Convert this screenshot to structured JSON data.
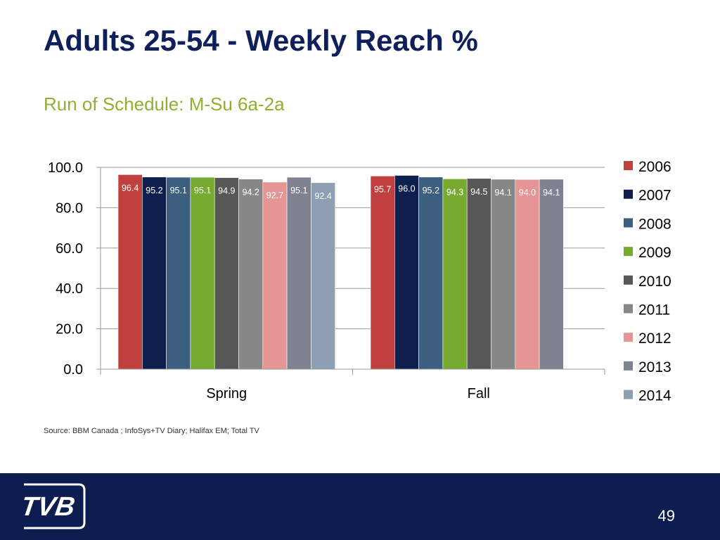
{
  "title": "Adults 25-54 - Weekly Reach %",
  "subtitle": "Run of Schedule: M-Su 6a-2a",
  "source": "Source: BBM Canada ; InfoSys+TV Diary; Halifax EM; Total TV",
  "page_number": "49",
  "logo_text": "TVB",
  "chart_data": {
    "type": "bar",
    "title": "",
    "xlabel": "",
    "ylabel": "",
    "ylim": [
      0,
      100
    ],
    "yticks": [
      0,
      20,
      40,
      60,
      80,
      100
    ],
    "ytick_labels": [
      "0.0",
      "20.0",
      "40.0",
      "60.0",
      "80.0",
      "100.0"
    ],
    "grid": true,
    "legend_position": "right",
    "categories": [
      "Spring",
      "Fall"
    ],
    "series": [
      {
        "name": "2006",
        "color": "#c0403d",
        "label_color": "#ffffff",
        "values": [
          96.4,
          95.7
        ],
        "labels": [
          "96.4",
          "95.7"
        ]
      },
      {
        "name": "2007",
        "color": "#0f1f4d",
        "label_color": "#ffffff",
        "values": [
          95.2,
          96.0
        ],
        "labels": [
          "95.2",
          "96.0"
        ]
      },
      {
        "name": "2008",
        "color": "#3c5e7f",
        "label_color": "#ffffff",
        "values": [
          95.1,
          95.2
        ],
        "labels": [
          "95.1",
          "95.2"
        ]
      },
      {
        "name": "2009",
        "color": "#77ab30",
        "label_color": "#ffffff",
        "values": [
          95.1,
          94.3
        ],
        "labels": [
          "95.1",
          "94.3"
        ]
      },
      {
        "name": "2010",
        "color": "#575757",
        "label_color": "#ffffff",
        "values": [
          94.9,
          94.5
        ],
        "labels": [
          "94.9",
          "94.5"
        ]
      },
      {
        "name": "2011",
        "color": "#878787",
        "label_color": "#ffffff",
        "values": [
          94.2,
          94.1
        ],
        "labels": [
          "94.2",
          "94.1"
        ]
      },
      {
        "name": "2012",
        "color": "#e59694",
        "label_color": "#ffffff",
        "values": [
          92.7,
          94.0
        ],
        "labels": [
          "92.7",
          "94.0"
        ]
      },
      {
        "name": "2013",
        "color": "#7f8391",
        "label_color": "#ffffff",
        "values": [
          95.1,
          94.1
        ],
        "labels": [
          "95.1",
          "94.1"
        ]
      },
      {
        "name": "2014",
        "color": "#8e9fb4",
        "label_color": "#ffffff",
        "values": [
          92.4,
          null
        ],
        "labels": [
          "92.4",
          ""
        ]
      }
    ]
  }
}
